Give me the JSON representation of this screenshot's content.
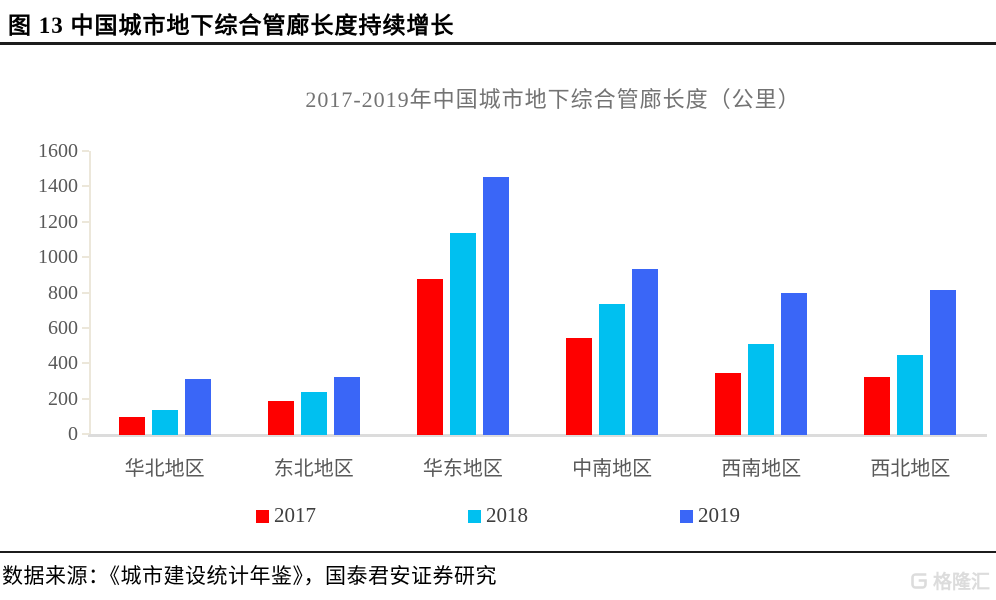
{
  "header": {
    "title": "图 13 中国城市地下综合管廊长度持续增长"
  },
  "chart_data": {
    "type": "bar",
    "title": "2017-2019年中国城市地下综合管廊长度（公里）",
    "categories": [
      "华北地区",
      "东北地区",
      "华东地区",
      "中南地区",
      "西南地区",
      "西北地区"
    ],
    "series": [
      {
        "name": "2017",
        "color": "#fe0000",
        "values": [
          100,
          195,
          880,
          550,
          350,
          330
        ]
      },
      {
        "name": "2018",
        "color": "#00c0f0",
        "values": [
          140,
          245,
          1140,
          740,
          515,
          455
        ]
      },
      {
        "name": "2019",
        "color": "#3a66f7",
        "values": [
          315,
          330,
          1460,
          940,
          800,
          820
        ]
      }
    ],
    "xlabel": "",
    "ylabel": "",
    "ylim": [
      0,
      1600
    ],
    "ytick_step": 200,
    "grid": false,
    "legend_position": "bottom"
  },
  "footer": {
    "source": "数据来源：《城市建设统计年鉴》，国泰君安证券研究"
  },
  "watermark": {
    "label": "格隆汇"
  },
  "colors": {
    "axis_vertical": "#ece7da",
    "axis_horizontal": "#dcdcdc",
    "tick_text": "#595959",
    "title_text": "#737373"
  }
}
